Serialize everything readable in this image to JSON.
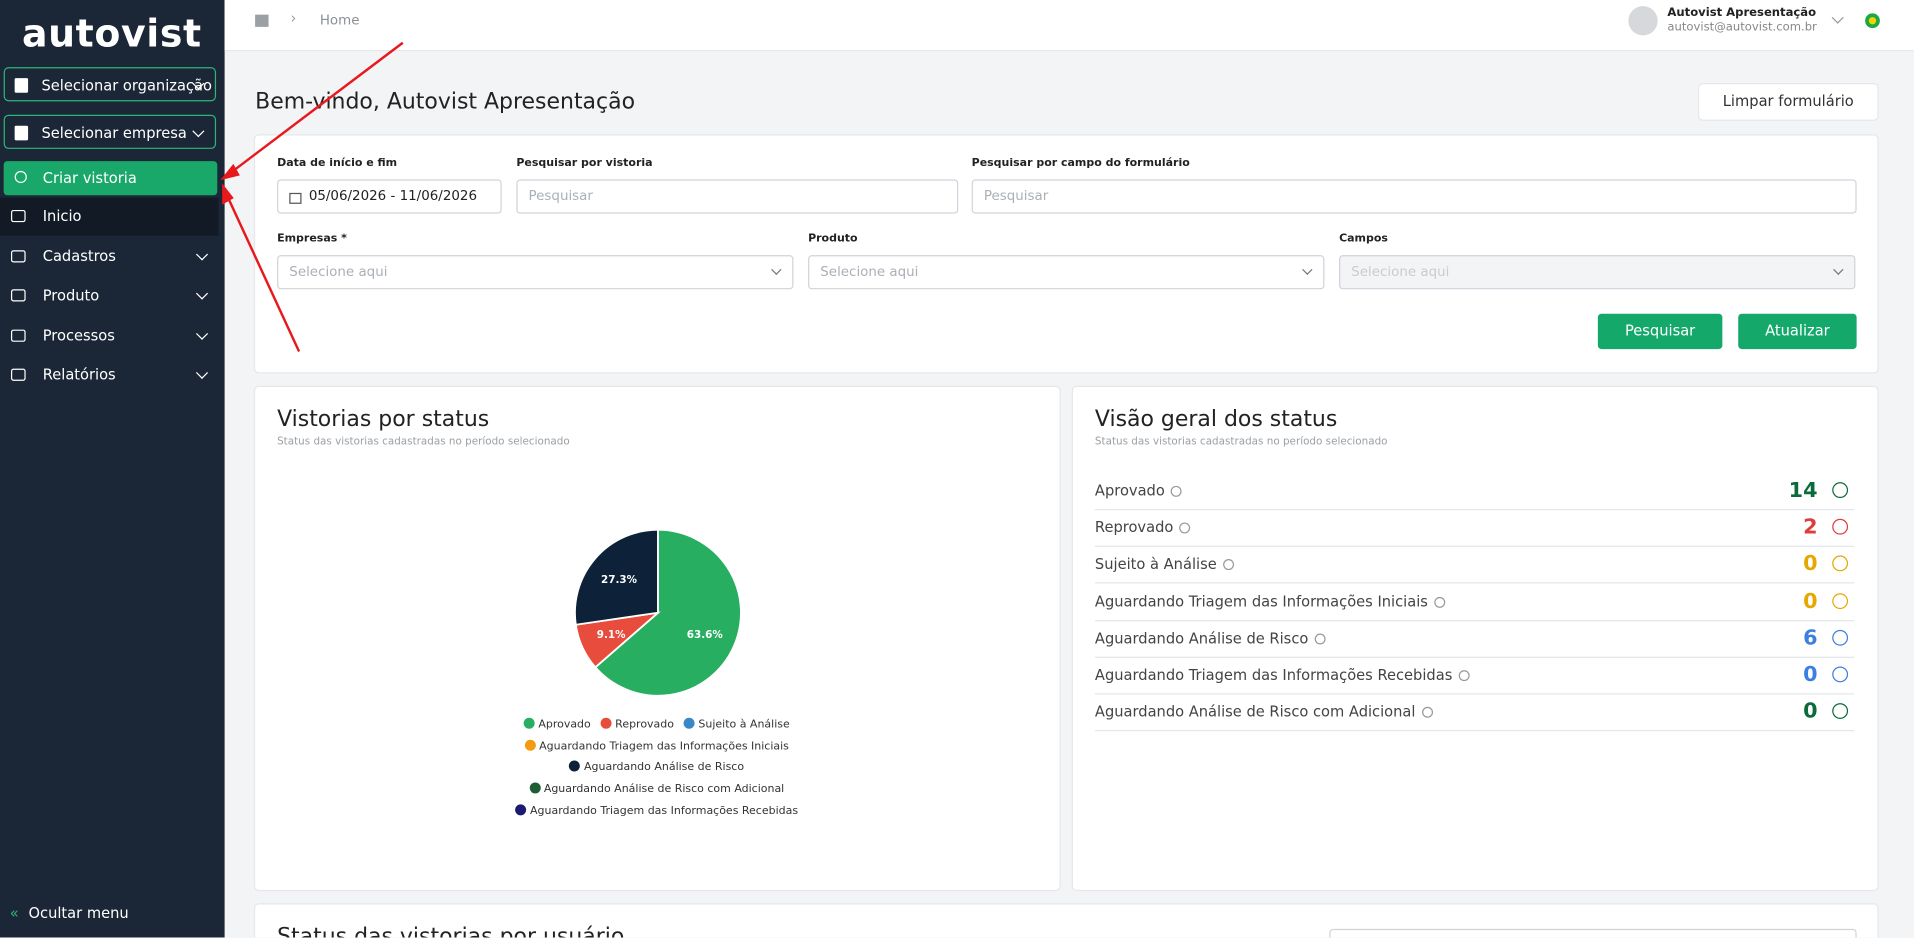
{
  "sidebar": {
    "logo": "autovist",
    "org_select": "Selecionar organização",
    "company_select": "Selecionar empresa",
    "create": "Criar vistoria",
    "menu": [
      "Inicio",
      "Cadastros",
      "Produto",
      "Processos",
      "Relatórios"
    ],
    "hide_menu": "Ocultar menu"
  },
  "topbar": {
    "breadcrumb": "Home",
    "user_name": "Autovist Apresentação",
    "user_email": "autovist@autovist.com.br"
  },
  "header": {
    "title": "Bem-vindo, Autovist Apresentação",
    "clear_button": "Limpar formulário"
  },
  "filters": {
    "date_label": "Data de início e fim",
    "date_value": "05/06/2026 - 11/06/2026",
    "search_label": "Pesquisar por vistoria",
    "search_placeholder": "Pesquisar",
    "field_label": "Pesquisar por campo do formulário",
    "field_placeholder": "Pesquisar",
    "selects": [
      {
        "label": "Empresas *",
        "placeholder": "Selecione aqui"
      },
      {
        "label": "Produto",
        "placeholder": "Selecione aqui"
      },
      {
        "label": "Campos",
        "placeholder": "Selecione aqui"
      }
    ],
    "search_button": "Pesquisar",
    "update_button": "Atualizar"
  },
  "status_chart": {
    "type": "pie",
    "title": "Vistorias por status",
    "subtitle": "Status das vistorias cadastradas no período selecionado",
    "categories": [
      "Aprovado",
      "Reprovado",
      "Sujeito à Análise",
      "Aguardando Triagem das Informações Iniciais",
      "Aguardando Análise de Risco",
      "Aguardando Análise de Risco com Adicional",
      "Aguardando Triagem das Informações Recebidas"
    ],
    "values": [
      63.6,
      9.1,
      0,
      0,
      27.3,
      0,
      0
    ],
    "value_labels": [
      "63.6%",
      "9.1%",
      null,
      null,
      "27.3%",
      null,
      null
    ],
    "colors": [
      "#27ae60",
      "#e74c3c",
      "#3a87c8",
      "#f39c12",
      "#0d2238",
      "#1e5e36",
      "#1a1a6e"
    ]
  },
  "overview": {
    "title": "Visão geral dos status",
    "subtitle": "Status das vistorias cadastradas no período selecionado",
    "items": [
      {
        "label": "Aprovado",
        "count": 14,
        "color": "#0b6b3a"
      },
      {
        "label": "Reprovado",
        "count": 2,
        "color": "#e03c3c"
      },
      {
        "label": "Sujeito à Análise",
        "count": 0,
        "color": "#e6a700"
      },
      {
        "label": "Aguardando Triagem das Informações Iniciais",
        "count": 0,
        "color": "#e6a700"
      },
      {
        "label": "Aguardando Análise de Risco",
        "count": 6,
        "color": "#3b7fe0"
      },
      {
        "label": "Aguardando Triagem das Informações Recebidas",
        "count": 0,
        "color": "#3b7fe0"
      },
      {
        "label": "Aguardando Análise de Risco com Adicional",
        "count": 0,
        "color": "#0b6b3a"
      }
    ]
  },
  "bottom": {
    "title": "Status das vistorias por usuário"
  }
}
